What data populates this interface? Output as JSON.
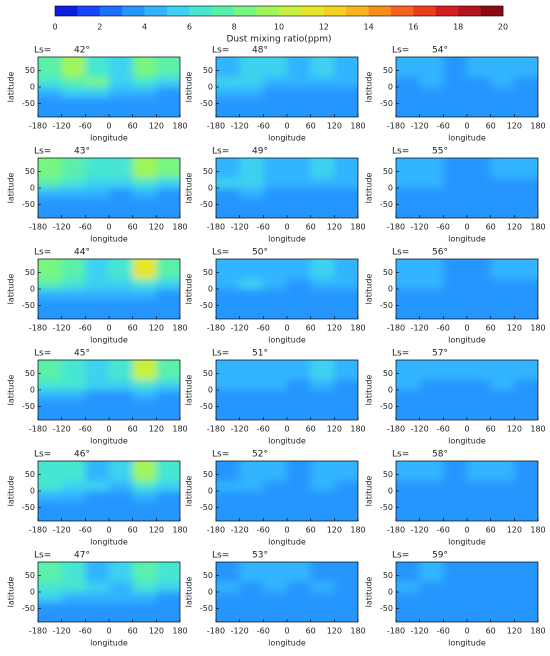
{
  "chart_data": {
    "type": "heatmap",
    "colorbar": {
      "label": "Dust mixing ratio(ppm)",
      "lim": [
        0,
        20
      ],
      "ticks": [
        0,
        2,
        4,
        6,
        8,
        10,
        12,
        14,
        16,
        18,
        20
      ],
      "colors": [
        "#0a1edc",
        "#1446ff",
        "#1e6eff",
        "#2896ff",
        "#32b4ff",
        "#3cd2f0",
        "#46e6d2",
        "#5af0aa",
        "#78f582",
        "#a0f55a",
        "#c8f03c",
        "#e6e628",
        "#f5d21e",
        "#fab41e",
        "#fa8c1e",
        "#f5641e",
        "#eb3c1e",
        "#d21e1e",
        "#b4141e",
        "#8c0a14"
      ]
    },
    "ls_prefix": "Ls=",
    "xlabel": "longitude",
    "ylabel": "latitude",
    "xlim": [
      -180,
      180
    ],
    "ylim": [
      -90,
      90
    ],
    "xticks": [
      -180,
      -120,
      -60,
      0,
      60,
      120,
      180
    ],
    "yticks": [
      -50,
      0,
      50
    ],
    "x": [
      -150,
      -90,
      -30,
      30,
      90,
      150
    ],
    "y": [
      45,
      15,
      -15,
      -45
    ],
    "panels": [
      {
        "ls": "42°",
        "z": [
          [
            7,
            9,
            6,
            5,
            8,
            7
          ],
          [
            6,
            7,
            8,
            5,
            6,
            5
          ],
          [
            4,
            5,
            5,
            4,
            4,
            3
          ],
          [
            3,
            3,
            3,
            3,
            3,
            3
          ]
        ]
      },
      {
        "ls": "43°",
        "z": [
          [
            8,
            7,
            6,
            6,
            9,
            8
          ],
          [
            7,
            6,
            5,
            5,
            6,
            5
          ],
          [
            4,
            4,
            4,
            3,
            4,
            3
          ],
          [
            3,
            3,
            3,
            3,
            3,
            3
          ]
        ]
      },
      {
        "ls": "44°",
        "z": [
          [
            8,
            7,
            5,
            6,
            11,
            7
          ],
          [
            7,
            6,
            5,
            5,
            6,
            5
          ],
          [
            4,
            4,
            4,
            4,
            4,
            3
          ],
          [
            3,
            3,
            3,
            3,
            3,
            3
          ]
        ]
      },
      {
        "ls": "45°",
        "z": [
          [
            7,
            6,
            5,
            6,
            10,
            7
          ],
          [
            6,
            6,
            5,
            5,
            6,
            5
          ],
          [
            4,
            4,
            3,
            3,
            4,
            3
          ],
          [
            3,
            3,
            3,
            3,
            3,
            3
          ]
        ]
      },
      {
        "ls": "46°",
        "z": [
          [
            6,
            6,
            4,
            5,
            9,
            6
          ],
          [
            6,
            5,
            5,
            4,
            6,
            5
          ],
          [
            4,
            4,
            3,
            3,
            4,
            3
          ],
          [
            3,
            3,
            3,
            3,
            3,
            3
          ]
        ]
      },
      {
        "ls": "47°",
        "z": [
          [
            7,
            6,
            4,
            5,
            7,
            6
          ],
          [
            6,
            6,
            5,
            4,
            6,
            5
          ],
          [
            5,
            4,
            4,
            4,
            4,
            3
          ],
          [
            3,
            3,
            3,
            3,
            3,
            3
          ]
        ]
      },
      {
        "ls": "48°",
        "z": [
          [
            4,
            5,
            5,
            4,
            5,
            4
          ],
          [
            5,
            5,
            4,
            4,
            4,
            4
          ],
          [
            4,
            4,
            3,
            3,
            3,
            3
          ],
          [
            3,
            3,
            3,
            3,
            3,
            3
          ]
        ]
      },
      {
        "ls": "49°",
        "z": [
          [
            4,
            5,
            4,
            4,
            5,
            4
          ],
          [
            5,
            5,
            4,
            4,
            4,
            4
          ],
          [
            3,
            4,
            3,
            3,
            3,
            3
          ],
          [
            3,
            3,
            3,
            3,
            3,
            3
          ]
        ]
      },
      {
        "ls": "50°",
        "z": [
          [
            4,
            4,
            4,
            4,
            5,
            4
          ],
          [
            4,
            5,
            4,
            3,
            4,
            4
          ],
          [
            3,
            3,
            3,
            3,
            3,
            3
          ],
          [
            3,
            3,
            3,
            3,
            3,
            3
          ]
        ]
      },
      {
        "ls": "51°",
        "z": [
          [
            4,
            4,
            4,
            4,
            5,
            4
          ],
          [
            4,
            4,
            4,
            3,
            4,
            3
          ],
          [
            3,
            3,
            3,
            3,
            3,
            3
          ],
          [
            3,
            3,
            3,
            3,
            3,
            3
          ]
        ]
      },
      {
        "ls": "52°",
        "z": [
          [
            3,
            4,
            4,
            3,
            4,
            4
          ],
          [
            4,
            4,
            3,
            3,
            4,
            3
          ],
          [
            3,
            3,
            3,
            3,
            3,
            3
          ],
          [
            3,
            3,
            3,
            3,
            3,
            3
          ]
        ]
      },
      {
        "ls": "53°",
        "z": [
          [
            3,
            4,
            4,
            4,
            3,
            3
          ],
          [
            4,
            3,
            4,
            3,
            4,
            3
          ],
          [
            3,
            3,
            3,
            3,
            3,
            3
          ],
          [
            3,
            3,
            3,
            3,
            3,
            3
          ]
        ]
      },
      {
        "ls": "54°",
        "z": [
          [
            4,
            4,
            3,
            4,
            4,
            4
          ],
          [
            3,
            4,
            3,
            3,
            4,
            3
          ],
          [
            3,
            3,
            3,
            3,
            3,
            3
          ],
          [
            3,
            3,
            3,
            3,
            3,
            3
          ]
        ]
      },
      {
        "ls": "55°",
        "z": [
          [
            4,
            4,
            3,
            3,
            4,
            4
          ],
          [
            4,
            4,
            3,
            3,
            3,
            3
          ],
          [
            3,
            3,
            3,
            3,
            3,
            3
          ],
          [
            3,
            3,
            3,
            3,
            3,
            3
          ]
        ]
      },
      {
        "ls": "56°",
        "z": [
          [
            4,
            4,
            3,
            3,
            4,
            4
          ],
          [
            4,
            4,
            3,
            3,
            3,
            3
          ],
          [
            3,
            3,
            3,
            3,
            3,
            3
          ],
          [
            3,
            3,
            3,
            3,
            3,
            3
          ]
        ]
      },
      {
        "ls": "57°",
        "z": [
          [
            4,
            4,
            4,
            4,
            4,
            4
          ],
          [
            4,
            3,
            3,
            3,
            4,
            3
          ],
          [
            3,
            3,
            3,
            3,
            3,
            3
          ],
          [
            3,
            3,
            3,
            3,
            3,
            3
          ]
        ]
      },
      {
        "ls": "58°",
        "z": [
          [
            4,
            4,
            3,
            4,
            4,
            3
          ],
          [
            3,
            3,
            3,
            3,
            3,
            3
          ],
          [
            3,
            3,
            3,
            3,
            3,
            3
          ],
          [
            3,
            3,
            3,
            3,
            3,
            3
          ]
        ]
      },
      {
        "ls": "59°",
        "z": [
          [
            3,
            4,
            3,
            3,
            3,
            3
          ],
          [
            4,
            3,
            3,
            3,
            3,
            3
          ],
          [
            3,
            3,
            3,
            3,
            3,
            3
          ],
          [
            3,
            3,
            3,
            3,
            3,
            3
          ]
        ]
      }
    ]
  }
}
